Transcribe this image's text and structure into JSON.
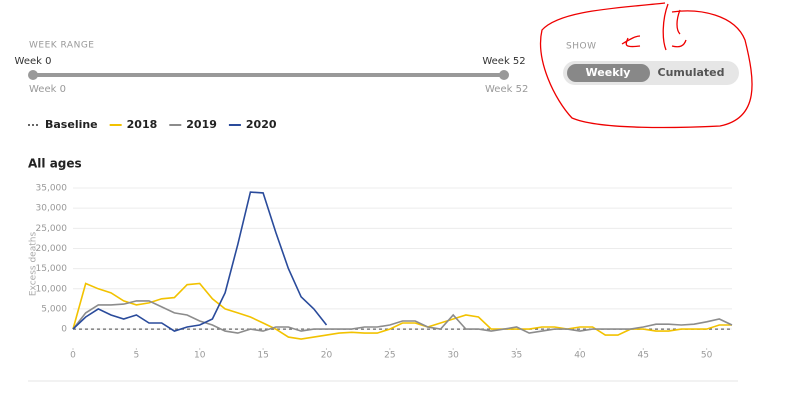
{
  "controls": {
    "range_label": "WEEK RANGE",
    "start_label": "Week 0",
    "end_label": "Week 52",
    "min_label": "Week 0",
    "max_label": "Week 52",
    "show_label": "SHOW",
    "options": [
      "Weekly",
      "Cumulated"
    ]
  },
  "chart_data": {
    "type": "line",
    "title": "All ages",
    "y_label": "Excess deaths",
    "x": [
      0,
      1,
      2,
      3,
      4,
      5,
      6,
      7,
      8,
      9,
      10,
      11,
      12,
      13,
      14,
      15,
      16,
      17,
      18,
      19,
      20,
      21,
      22,
      23,
      24,
      25,
      26,
      27,
      28,
      29,
      30,
      31,
      32,
      33,
      34,
      35,
      36,
      37,
      38,
      39,
      40,
      41,
      42,
      43,
      44,
      45,
      46,
      47,
      48,
      49,
      50,
      51,
      52
    ],
    "xlim": [
      0,
      52
    ],
    "xticks": [
      0,
      5,
      10,
      15,
      20,
      25,
      30,
      35,
      40,
      45,
      50
    ],
    "ylim": [
      -4700,
      36000
    ],
    "yticks": [
      0,
      {
        "value": 5000,
        "label": "5,000"
      },
      {
        "value": 10000,
        "label": "10,000"
      },
      {
        "value": 15000,
        "label": "15,000"
      },
      {
        "value": 20000,
        "label": "20,000"
      },
      {
        "value": 25000,
        "label": "25,000"
      },
      {
        "value": 30000,
        "label": "30,000"
      },
      {
        "value": 35000,
        "label": "35,000"
      }
    ],
    "grid": true,
    "series": [
      {
        "name": "Baseline",
        "color": "#666666",
        "dashed": true,
        "values": [
          0,
          0,
          0,
          0,
          0,
          0,
          0,
          0,
          0,
          0,
          0,
          0,
          0,
          0,
          0,
          0,
          0,
          0,
          0,
          0,
          0,
          0,
          0,
          0,
          0,
          0,
          0,
          0,
          0,
          0,
          0,
          0,
          0,
          0,
          0,
          0,
          0,
          0,
          0,
          0,
          0,
          0,
          0,
          0,
          0,
          0,
          0,
          0,
          0,
          0,
          0,
          0,
          0
        ]
      },
      {
        "name": "2018",
        "color": "#f2c200",
        "values": [
          0,
          11300,
          10000,
          9000,
          7000,
          6000,
          6500,
          7500,
          7800,
          11000,
          11300,
          7500,
          5000,
          4000,
          3000,
          1500,
          0,
          -2000,
          -2500,
          -2000,
          -1500,
          -1000,
          -800,
          -1000,
          -1000,
          0,
          1500,
          1500,
          500,
          1500,
          2500,
          3500,
          3000,
          0,
          0,
          0,
          0,
          500,
          500,
          0,
          500,
          500,
          -1500,
          -1500,
          0,
          0,
          -500,
          -500,
          0,
          0,
          0,
          1000,
          1000
        ]
      },
      {
        "name": "2019",
        "color": "#8c8c8c",
        "values": [
          0,
          4000,
          6000,
          6000,
          6200,
          7000,
          7000,
          5500,
          4000,
          3500,
          2000,
          1000,
          -500,
          -1000,
          0,
          -500,
          500,
          500,
          -500,
          0,
          0,
          0,
          0,
          500,
          500,
          1000,
          2000,
          2000,
          500,
          0,
          3500,
          0,
          0,
          -500,
          0,
          500,
          -1000,
          -500,
          0,
          0,
          -500,
          0,
          0,
          0,
          0,
          500,
          1200,
          1200,
          1000,
          1200,
          1800,
          2500,
          1000
        ]
      },
      {
        "name": "2020",
        "color": "#2a4b9b",
        "values": [
          0,
          3000,
          5000,
          3500,
          2500,
          3500,
          1500,
          1500,
          -500,
          500,
          1000,
          2500,
          9000,
          21000,
          34000,
          33800,
          24000,
          15000,
          8000,
          5000,
          1000,
          null,
          null,
          null,
          null,
          null,
          null,
          null,
          null,
          null,
          null,
          null,
          null,
          null,
          null,
          null,
          null,
          null,
          null,
          null,
          null,
          null,
          null,
          null,
          null,
          null,
          null,
          null,
          null,
          null,
          null,
          null,
          null
        ]
      }
    ]
  }
}
